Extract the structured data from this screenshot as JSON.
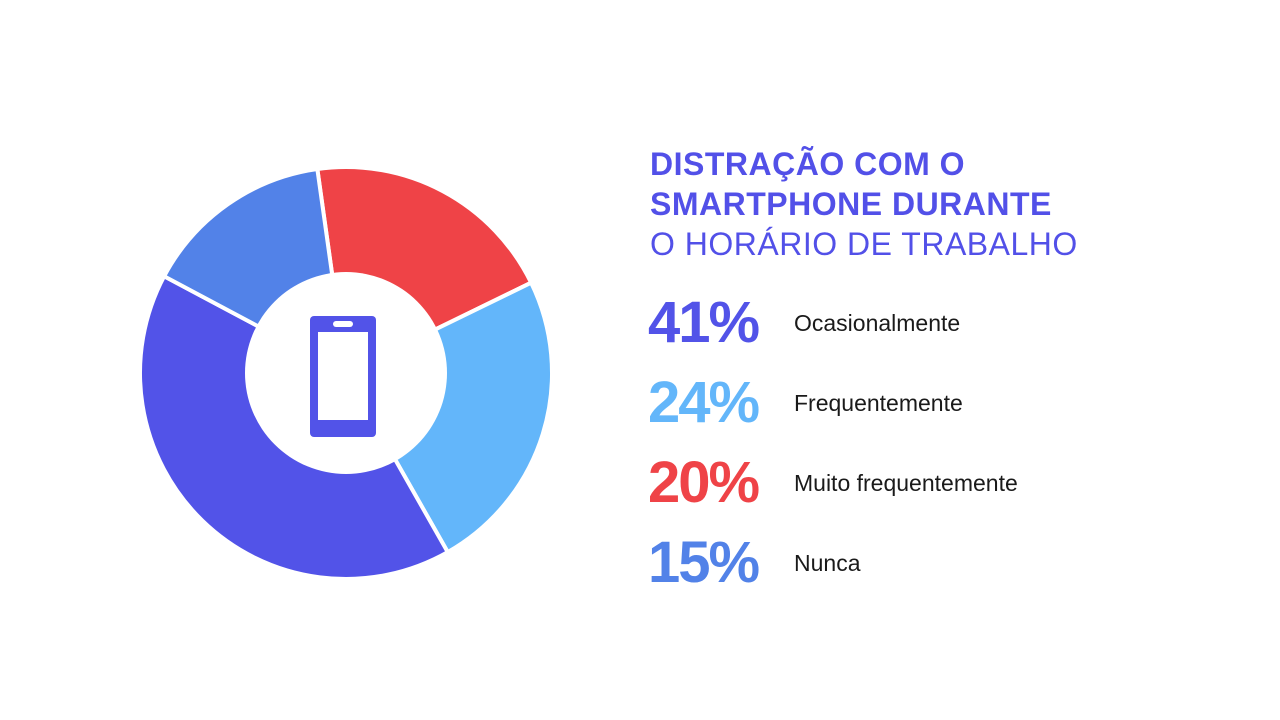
{
  "title": {
    "line1": "DISTRAÇÃO COM O",
    "line2": "SMARTPHONE DURANTE",
    "line3": "O HORÁRIO DE TRABALHO"
  },
  "chart_data": {
    "type": "pie",
    "variant": "donut",
    "center_icon": "smartphone-icon",
    "slices": [
      {
        "label": "Ocasionalmente",
        "value": 41,
        "display": "41%",
        "color": "#5253e8"
      },
      {
        "label": "Frequentemente",
        "value": 24,
        "display": "24%",
        "color": "#63b6fa"
      },
      {
        "label": "Muito frequentemente",
        "value": 20,
        "display": "20%",
        "color": "#ef4347"
      },
      {
        "label": "Nunca",
        "value": 15,
        "display": "15%",
        "color": "#5282e8"
      }
    ]
  }
}
